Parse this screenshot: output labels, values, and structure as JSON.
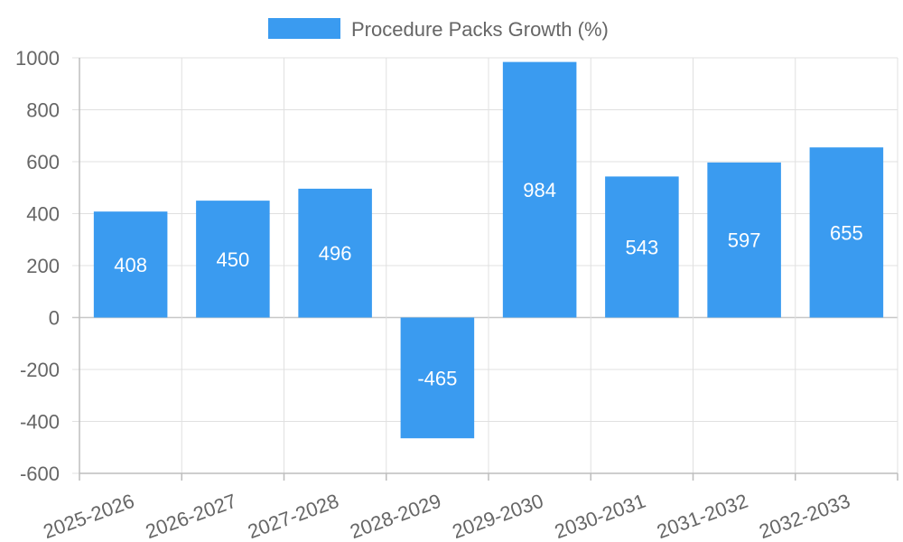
{
  "chart_data": {
    "type": "bar",
    "categories": [
      "2025-2026",
      "2026-2027",
      "2027-2028",
      "2028-2029",
      "2029-2030",
      "2030-2031",
      "2031-2032",
      "2032-2033"
    ],
    "series": [
      {
        "name": "Procedure Packs Growth (%)",
        "values": [
          408,
          450,
          496,
          -465,
          984,
          543,
          597,
          655
        ],
        "color": "#3a9bf0"
      }
    ],
    "ylim": [
      -600,
      1000
    ],
    "yticks": [
      1000,
      800,
      600,
      400,
      200,
      0,
      -200,
      -400,
      -600
    ],
    "grid": true,
    "legend_position": "top-center",
    "data_labels": true
  }
}
